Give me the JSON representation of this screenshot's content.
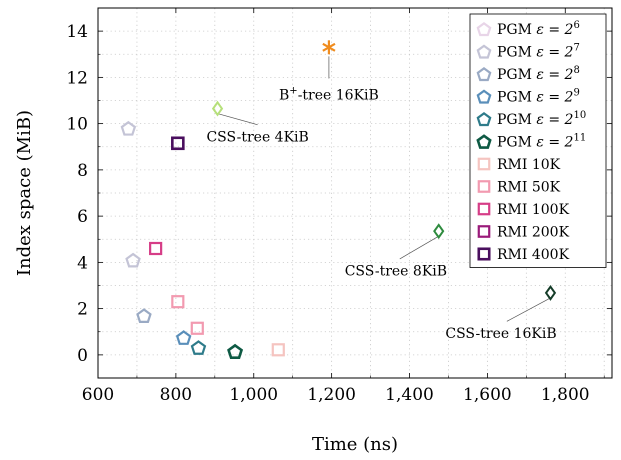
{
  "chart_data": {
    "type": "scatter",
    "xlabel": "Time (ns)",
    "ylabel": "Index space (MiB)",
    "xlim": [
      600,
      1920
    ],
    "ylim": [
      -1,
      15
    ],
    "xticks": [
      600,
      800,
      1000,
      1200,
      1400,
      1600,
      1800
    ],
    "xtick_labels": [
      "600",
      "800",
      "1,000",
      "1,200",
      "1,400",
      "1,600",
      "1,800"
    ],
    "yticks": [
      0,
      2,
      4,
      6,
      8,
      10,
      12,
      14
    ],
    "ytick_labels": [
      "0",
      "2",
      "4",
      "6",
      "8",
      "10",
      "12",
      "14"
    ],
    "grid": true,
    "legend_position": "top-right",
    "series": [
      {
        "name": "PGM ε = 2^6",
        "label_base": "PGM",
        "label_eps": "ε = 2",
        "label_exp": "6",
        "marker": "pentagon",
        "color": "#e8d5e8",
        "width": 2.2,
        "x": [],
        "y": []
      },
      {
        "name": "PGM ε = 2^7",
        "label_base": "PGM",
        "label_eps": "ε = 2",
        "label_exp": "7",
        "marker": "pentagon",
        "color": "#c4c4d6",
        "width": 2.2,
        "x": [
          678,
          690
        ],
        "y": [
          9.8,
          4.1
        ]
      },
      {
        "name": "PGM ε = 2^8",
        "label_base": "PGM",
        "label_eps": "ε = 2",
        "label_exp": "8",
        "marker": "pentagon",
        "color": "#9aaac4",
        "width": 2.2,
        "x": [
          718
        ],
        "y": [
          1.7
        ]
      },
      {
        "name": "PGM ε = 2^9",
        "label_base": "PGM",
        "label_eps": "ε = 2",
        "label_exp": "9",
        "marker": "pentagon",
        "color": "#5a8fba",
        "width": 2.2,
        "x": [
          820
        ],
        "y": [
          0.75
        ]
      },
      {
        "name": "PGM ε = 2^10",
        "label_base": "PGM",
        "label_eps": "ε = 2",
        "label_exp": "10",
        "marker": "pentagon",
        "color": "#2e7b8a",
        "width": 2.2,
        "x": [
          858
        ],
        "y": [
          0.32
        ]
      },
      {
        "name": "PGM ε = 2^11",
        "label_base": "PGM",
        "label_eps": "ε = 2",
        "label_exp": "11",
        "marker": "pentagon",
        "color": "#0e5a44",
        "width": 2.6,
        "x": [
          952
        ],
        "y": [
          0.15
        ]
      },
      {
        "name": "RMI 10K",
        "marker": "square",
        "color": "#f5c4c0",
        "width": 2.2,
        "x": [
          1063
        ],
        "y": [
          0.22
        ]
      },
      {
        "name": "RMI 50K",
        "marker": "square",
        "color": "#f29ab0",
        "width": 2.2,
        "x": [
          805,
          855
        ],
        "y": [
          2.3,
          1.15
        ]
      },
      {
        "name": "RMI 100K",
        "marker": "square",
        "color": "#d63d87",
        "width": 2.2,
        "x": [
          748
        ],
        "y": [
          4.6
        ]
      },
      {
        "name": "RMI 200K",
        "marker": "square",
        "color": "#9a1a7a",
        "width": 2.2,
        "x": [],
        "y": []
      },
      {
        "name": "RMI 400K",
        "marker": "square",
        "color": "#4a0f5e",
        "width": 2.6,
        "x": [
          805
        ],
        "y": [
          9.15
        ]
      },
      {
        "name": "B+-tree 16KiB",
        "marker": "star",
        "color": "#f08c1e",
        "width": 2.0,
        "x": [
          1193
        ],
        "y": [
          13.3
        ]
      },
      {
        "name": "CSS-tree 4KiB",
        "marker": "diamond",
        "color": "#b6e07a",
        "width": 2.0,
        "x": [
          907
        ],
        "y": [
          10.65
        ]
      },
      {
        "name": "CSS-tree 8KiB",
        "marker": "diamond",
        "color": "#2e8b3e",
        "width": 2.0,
        "x": [
          1475
        ],
        "y": [
          5.35
        ]
      },
      {
        "name": "CSS-tree 16KiB",
        "marker": "diamond",
        "color": "#143c28",
        "width": 2.0,
        "x": [
          1762
        ],
        "y": [
          2.68
        ]
      }
    ],
    "annotations": [
      {
        "text": "B⁺-tree 16KiB",
        "base": "B",
        "sup": "+",
        "rest": "-tree 16KiB",
        "point": [
          1193,
          13.3
        ],
        "text_at": [
          1193,
          11.25
        ],
        "line_to": [
          1193,
          11.95
        ],
        "anchor": "middle"
      },
      {
        "text": "CSS-tree 4KiB",
        "point": [
          907,
          10.65
        ],
        "text_at": [
          1010,
          9.45
        ],
        "line_to": [
          1010,
          9.95
        ],
        "anchor": "middle"
      },
      {
        "text": "CSS-tree 8KiB",
        "point": [
          1475,
          5.35
        ],
        "text_at": [
          1365,
          3.65
        ],
        "line_to": [
          1375,
          4.15
        ],
        "anchor": "middle"
      },
      {
        "text": "CSS-tree 16KiB",
        "point": [
          1762,
          2.68
        ],
        "text_at": [
          1635,
          0.95
        ],
        "line_to": [
          1650,
          1.45
        ],
        "anchor": "middle"
      }
    ]
  }
}
